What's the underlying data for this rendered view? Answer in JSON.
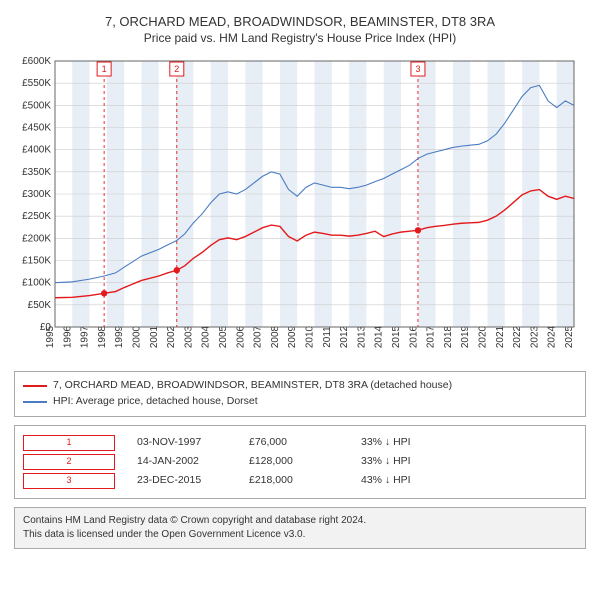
{
  "title": "7, ORCHARD MEAD, BROADWINDSOR, BEAMINSTER, DT8 3RA",
  "subtitle": "Price paid vs. HM Land Registry's House Price Index (HPI)",
  "chart": {
    "type": "line",
    "ylabel_prefix": "£",
    "ylabel_suffix": "K",
    "ylim": [
      0,
      600
    ],
    "ytick_step": 50,
    "xlim": [
      1995,
      2025
    ],
    "xticks": [
      1995,
      1996,
      1997,
      1998,
      1999,
      2000,
      2001,
      2002,
      2003,
      2004,
      2005,
      2006,
      2007,
      2008,
      2009,
      2010,
      2011,
      2012,
      2013,
      2014,
      2015,
      2016,
      2017,
      2018,
      2019,
      2020,
      2021,
      2022,
      2023,
      2024,
      2025
    ],
    "background_color": "#ffffff",
    "grid_color": "#cccccc",
    "band_color": "#e8eef5",
    "band_years": [
      1996,
      1998,
      2000,
      2002,
      2004,
      2006,
      2008,
      2010,
      2012,
      2014,
      2016,
      2018,
      2020,
      2022,
      2024
    ],
    "series": {
      "hpi": {
        "color": "#4a7cc4",
        "stroke_width": 1.1,
        "points": [
          [
            1995,
            100
          ],
          [
            1996,
            102
          ],
          [
            1997,
            108
          ],
          [
            1997.84,
            115
          ],
          [
            1998.5,
            122
          ],
          [
            1999,
            135
          ],
          [
            2000,
            160
          ],
          [
            2001,
            175
          ],
          [
            2001.5,
            185
          ],
          [
            2002.04,
            195
          ],
          [
            2002.5,
            210
          ],
          [
            2003,
            235
          ],
          [
            2003.5,
            255
          ],
          [
            2004,
            280
          ],
          [
            2004.5,
            300
          ],
          [
            2005,
            305
          ],
          [
            2005.5,
            300
          ],
          [
            2006,
            310
          ],
          [
            2006.5,
            325
          ],
          [
            2007,
            340
          ],
          [
            2007.5,
            350
          ],
          [
            2008,
            345
          ],
          [
            2008.5,
            310
          ],
          [
            2009,
            295
          ],
          [
            2009.5,
            315
          ],
          [
            2010,
            325
          ],
          [
            2010.5,
            320
          ],
          [
            2011,
            315
          ],
          [
            2011.5,
            315
          ],
          [
            2012,
            312
          ],
          [
            2012.5,
            315
          ],
          [
            2013,
            320
          ],
          [
            2013.5,
            328
          ],
          [
            2014,
            335
          ],
          [
            2014.5,
            345
          ],
          [
            2015,
            355
          ],
          [
            2015.5,
            365
          ],
          [
            2015.98,
            380
          ],
          [
            2016.5,
            390
          ],
          [
            2017,
            395
          ],
          [
            2017.5,
            400
          ],
          [
            2018,
            405
          ],
          [
            2018.5,
            408
          ],
          [
            2019,
            410
          ],
          [
            2019.5,
            412
          ],
          [
            2020,
            420
          ],
          [
            2020.5,
            435
          ],
          [
            2021,
            460
          ],
          [
            2021.5,
            490
          ],
          [
            2022,
            520
          ],
          [
            2022.5,
            540
          ],
          [
            2023,
            545
          ],
          [
            2023.5,
            510
          ],
          [
            2024,
            495
          ],
          [
            2024.5,
            510
          ],
          [
            2025,
            500
          ]
        ]
      },
      "property": {
        "color": "#e31a1c",
        "stroke_width": 1.4,
        "points": [
          [
            1995,
            66
          ],
          [
            1996,
            67
          ],
          [
            1997,
            71
          ],
          [
            1997.84,
            76
          ],
          [
            1998.5,
            80
          ],
          [
            1999,
            89
          ],
          [
            2000,
            105
          ],
          [
            2001,
            115
          ],
          [
            2001.5,
            122
          ],
          [
            2002.04,
            128
          ],
          [
            2002.5,
            138
          ],
          [
            2003,
            155
          ],
          [
            2003.5,
            168
          ],
          [
            2004,
            184
          ],
          [
            2004.5,
            197
          ],
          [
            2005,
            201
          ],
          [
            2005.5,
            197
          ],
          [
            2006,
            204
          ],
          [
            2006.5,
            214
          ],
          [
            2007,
            224
          ],
          [
            2007.5,
            230
          ],
          [
            2008,
            227
          ],
          [
            2008.5,
            204
          ],
          [
            2009,
            194
          ],
          [
            2009.5,
            207
          ],
          [
            2010,
            214
          ],
          [
            2010.5,
            211
          ],
          [
            2011,
            207
          ],
          [
            2011.5,
            207
          ],
          [
            2012,
            205
          ],
          [
            2012.5,
            207
          ],
          [
            2013,
            211
          ],
          [
            2013.5,
            216
          ],
          [
            2014,
            204
          ],
          [
            2014.5,
            210
          ],
          [
            2015,
            214
          ],
          [
            2015.5,
            216
          ],
          [
            2015.98,
            218
          ],
          [
            2016.5,
            224
          ],
          [
            2017,
            227
          ],
          [
            2017.5,
            229
          ],
          [
            2018,
            232
          ],
          [
            2018.5,
            234
          ],
          [
            2019,
            235
          ],
          [
            2019.5,
            236
          ],
          [
            2020,
            241
          ],
          [
            2020.5,
            250
          ],
          [
            2021,
            264
          ],
          [
            2021.5,
            281
          ],
          [
            2022,
            298
          ],
          [
            2022.5,
            307
          ],
          [
            2023,
            310
          ],
          [
            2023.5,
            295
          ],
          [
            2024,
            288
          ],
          [
            2024.5,
            295
          ],
          [
            2025,
            290
          ]
        ]
      }
    },
    "sale_markers": [
      {
        "n": "1",
        "year": 1997.84,
        "price": 76,
        "box_y": 560
      },
      {
        "n": "2",
        "year": 2002.04,
        "price": 128,
        "box_y": 560
      },
      {
        "n": "3",
        "year": 2015.98,
        "price": 218,
        "box_y": 560
      }
    ],
    "marker_stroke": "#e31a1c",
    "marker_dash": "3,3"
  },
  "legend": {
    "series1": {
      "label": "7, ORCHARD MEAD, BROADWINDSOR, BEAMINSTER, DT8 3RA (detached house)",
      "color": "#e31a1c"
    },
    "series2": {
      "label": "HPI: Average price, detached house, Dorset",
      "color": "#4a7cc4"
    }
  },
  "sales": [
    {
      "n": "1",
      "date": "03-NOV-1997",
      "price": "£76,000",
      "diff": "33% ↓ HPI"
    },
    {
      "n": "2",
      "date": "14-JAN-2002",
      "price": "£128,000",
      "diff": "33% ↓ HPI"
    },
    {
      "n": "3",
      "date": "23-DEC-2015",
      "price": "£218,000",
      "diff": "43% ↓ HPI"
    }
  ],
  "attribution": {
    "l1": "Contains HM Land Registry data © Crown copyright and database right 2024.",
    "l2": "This data is licensed under the Open Government Licence v3.0."
  }
}
